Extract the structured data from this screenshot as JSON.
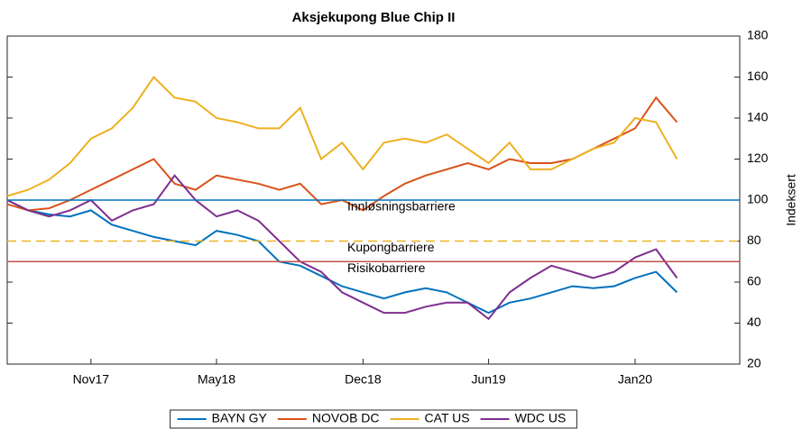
{
  "chart_data": {
    "type": "line",
    "title": "Aksjekupong Blue Chip II",
    "y_label": "Indeksert",
    "x": [
      "2017-07",
      "2017-08",
      "2017-09",
      "2017-10",
      "2017-11",
      "2017-12",
      "2018-01",
      "2018-02",
      "2018-03",
      "2018-04",
      "2018-05",
      "2018-06",
      "2018-07",
      "2018-08",
      "2018-09",
      "2018-10",
      "2018-11",
      "2018-12",
      "2019-01",
      "2019-02",
      "2019-03",
      "2019-04",
      "2019-05",
      "2019-06",
      "2019-07",
      "2019-08",
      "2019-09",
      "2019-10",
      "2019-11",
      "2019-12",
      "2020-01",
      "2020-02",
      "2020-03"
    ],
    "series": [
      {
        "name": "BAYN GY",
        "color": "#0072BD",
        "values": [
          100,
          95,
          93,
          92,
          95,
          88,
          85,
          82,
          80,
          78,
          85,
          83,
          80,
          70,
          68,
          63,
          58,
          55,
          52,
          55,
          57,
          55,
          50,
          45,
          50,
          52,
          55,
          58,
          57,
          58,
          62,
          65,
          55
        ]
      },
      {
        "name": "NOVOB DC",
        "color": "#D95319",
        "values": [
          98,
          95,
          96,
          100,
          105,
          110,
          115,
          120,
          108,
          105,
          112,
          110,
          108,
          105,
          108,
          98,
          100,
          95,
          102,
          108,
          112,
          115,
          118,
          115,
          120,
          118,
          118,
          120,
          125,
          130,
          135,
          150,
          138
        ]
      },
      {
        "name": "CAT US",
        "color": "#EDB120",
        "values": [
          102,
          105,
          110,
          118,
          130,
          135,
          145,
          160,
          150,
          148,
          140,
          138,
          135,
          135,
          145,
          120,
          128,
          115,
          128,
          130,
          128,
          132,
          125,
          118,
          128,
          115,
          115,
          120,
          125,
          128,
          140,
          138,
          120
        ]
      },
      {
        "name": "WDC US",
        "color": "#7E2F8E",
        "values": [
          100,
          95,
          92,
          95,
          100,
          90,
          95,
          98,
          112,
          100,
          92,
          95,
          90,
          80,
          70,
          65,
          55,
          50,
          45,
          45,
          48,
          50,
          50,
          42,
          55,
          62,
          68,
          65,
          62,
          65,
          72,
          76,
          62
        ]
      }
    ],
    "reference_lines": [
      {
        "label": "Innløsningsbarriere",
        "value": 100,
        "color": "#0072BD",
        "dashed": false
      },
      {
        "label": "Kupongbarriere",
        "value": 80,
        "color": "#EDB120",
        "dashed": true
      },
      {
        "label": "Risikobarriere",
        "value": 70,
        "color": "#C0504D",
        "dashed": false
      }
    ],
    "xlim": [
      "2017-07",
      "2020-06"
    ],
    "xticks": [
      {
        "value": "2017-11",
        "label": "Nov17"
      },
      {
        "value": "2018-05",
        "label": "May18"
      },
      {
        "value": "2018-12",
        "label": "Dec18"
      },
      {
        "value": "2019-06",
        "label": "Jun19"
      },
      {
        "value": "2020-01",
        "label": "Jan20"
      }
    ],
    "ylim": [
      20,
      180
    ],
    "yticks": [
      20,
      40,
      60,
      80,
      100,
      120,
      140,
      160,
      180
    ],
    "legend": "bottom"
  }
}
